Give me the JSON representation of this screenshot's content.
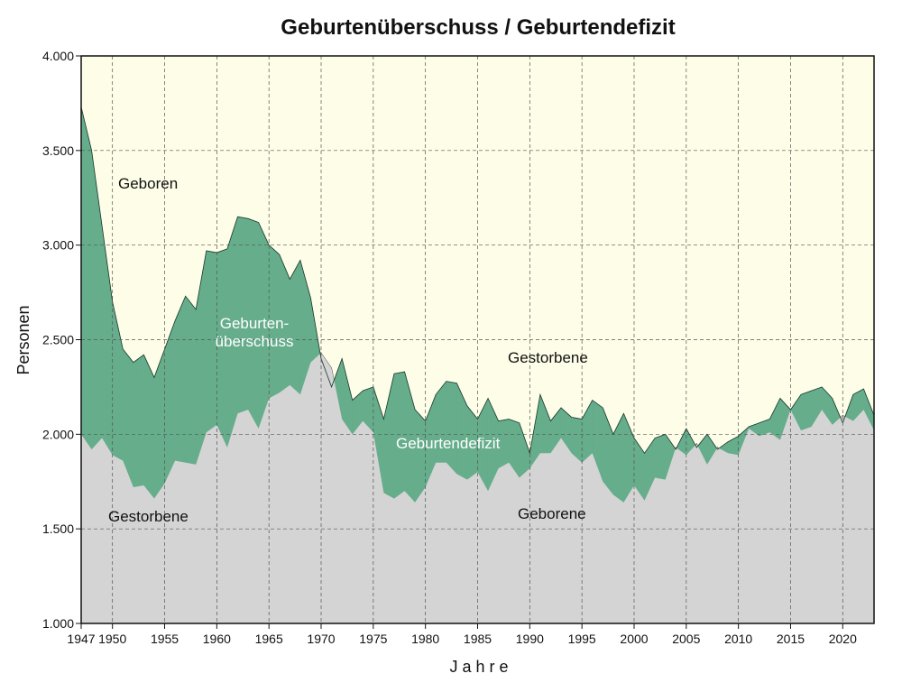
{
  "chart_data": {
    "type": "area",
    "title": "Geburtenüberschuss / Geburtendefizit",
    "xlabel": "J a h r e",
    "ylabel": "Personen",
    "xlim": [
      1947,
      2023
    ],
    "ylim": [
      1000,
      4000
    ],
    "x_ticks": [
      1947,
      1950,
      1955,
      1960,
      1965,
      1970,
      1975,
      1980,
      1985,
      1990,
      1995,
      2000,
      2005,
      2010,
      2015,
      2020
    ],
    "y_ticks": [
      {
        "value": 1000,
        "label": "1.000"
      },
      {
        "value": 1500,
        "label": "1.500"
      },
      {
        "value": 2000,
        "label": "2.000"
      },
      {
        "value": 2500,
        "label": "2.500"
      },
      {
        "value": 3000,
        "label": "3.000"
      },
      {
        "value": 3500,
        "label": "3.500"
      },
      {
        "value": 4000,
        "label": "4.000"
      }
    ],
    "grid": true,
    "years": [
      1947,
      1948,
      1949,
      1950,
      1951,
      1952,
      1953,
      1954,
      1955,
      1956,
      1957,
      1958,
      1959,
      1960,
      1961,
      1962,
      1963,
      1964,
      1965,
      1966,
      1967,
      1968,
      1969,
      1970,
      1971,
      1972,
      1973,
      1974,
      1975,
      1976,
      1977,
      1978,
      1979,
      1980,
      1981,
      1982,
      1983,
      1984,
      1985,
      1986,
      1987,
      1988,
      1989,
      1990,
      1991,
      1992,
      1993,
      1994,
      1995,
      1996,
      1997,
      1998,
      1999,
      2000,
      2001,
      2002,
      2003,
      2004,
      2005,
      2006,
      2007,
      2008,
      2009,
      2010,
      2011,
      2012,
      2013,
      2014,
      2015,
      2016,
      2017,
      2018,
      2019,
      2020,
      2021,
      2022,
      2023
    ],
    "series": [
      {
        "key": "births",
        "values": [
          3730,
          3500,
          3100,
          2700,
          2450,
          2380,
          2420,
          2300,
          2450,
          2600,
          2730,
          2660,
          2970,
          2960,
          2980,
          3150,
          3140,
          3120,
          3000,
          2950,
          2820,
          2920,
          2720,
          2400,
          2250,
          2400,
          2180,
          2230,
          2250,
          2080,
          2320,
          2330,
          2130,
          2070,
          2210,
          2280,
          2270,
          2150,
          2080,
          2190,
          2070,
          2080,
          2060,
          1900,
          2210,
          2070,
          2140,
          2090,
          2080,
          2180,
          2140,
          2000,
          2110,
          1980,
          1900,
          1980,
          2000,
          1920,
          2030,
          1930,
          2000,
          1920,
          1960,
          1990,
          2040,
          2060,
          2080,
          2190,
          2130,
          2210,
          2230,
          2250,
          2190,
          2060,
          2210,
          2240,
          2100
        ]
      },
      {
        "key": "deaths",
        "values": [
          2000,
          1920,
          1980,
          1890,
          1860,
          1720,
          1730,
          1660,
          1740,
          1860,
          1850,
          1840,
          2010,
          2050,
          1930,
          2110,
          2130,
          2030,
          2190,
          2220,
          2260,
          2210,
          2380,
          2430,
          2350,
          2080,
          2000,
          2070,
          2010,
          1690,
          1660,
          1700,
          1640,
          1720,
          1850,
          1850,
          1790,
          1760,
          1800,
          1700,
          1820,
          1850,
          1770,
          1820,
          1900,
          1900,
          1980,
          1900,
          1850,
          1900,
          1750,
          1680,
          1640,
          1730,
          1650,
          1770,
          1760,
          1930,
          1890,
          1950,
          1840,
          1930,
          1900,
          1890,
          2030,
          1990,
          2010,
          1970,
          2130,
          2020,
          2040,
          2130,
          2050,
          2100,
          2070,
          2130,
          2020
        ]
      }
    ],
    "annotations": {
      "geborene_top": "Geboren",
      "ueberschuss_line1": "Geburten-",
      "ueberschuss_line2": "überschuss",
      "gestorbene_left": "Gestorbene",
      "gestorbene_right": "Gestorbene",
      "defizit": "Geburtendefizit",
      "geborene_bottom": "Geborene"
    },
    "colors": {
      "plot_background": "#fdfde8",
      "deaths_area": "#d4d4d4",
      "surplus": "#66ad8c",
      "deficit": "#000000",
      "grid": "#555555"
    }
  }
}
